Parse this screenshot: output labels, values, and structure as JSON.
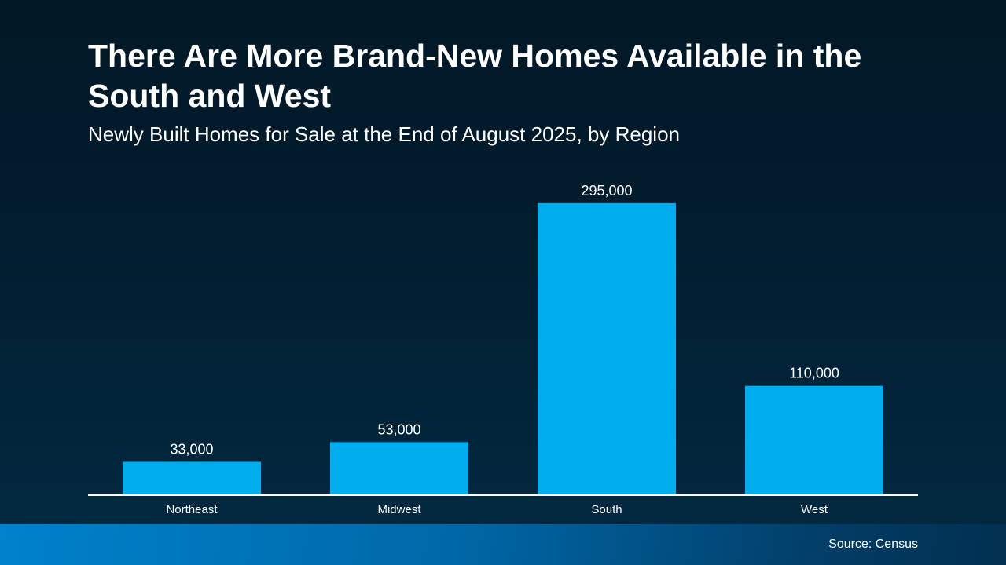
{
  "title": "There Are More Brand-New Homes Available in the South and West",
  "subtitle": "Newly Built Homes for Sale at the End of August 2025, by Region",
  "source": "Source: Census",
  "colors": {
    "bar": "#00adef",
    "background": "#021c2e",
    "axis": "#ffffff"
  },
  "chart_data": {
    "type": "bar",
    "title": "There Are More Brand-New Homes Available in the South and West",
    "subtitle": "Newly Built Homes for Sale at the End of August 2025, by Region",
    "categories": [
      "Northeast",
      "Midwest",
      "South",
      "West"
    ],
    "values": [
      33000,
      53000,
      295000,
      110000
    ],
    "data_labels": [
      "33,000",
      "53,000",
      "295,000",
      "110,000"
    ],
    "xlabel": "",
    "ylabel": "",
    "ylim": [
      0,
      300000
    ],
    "grid": false,
    "legend": "none"
  }
}
